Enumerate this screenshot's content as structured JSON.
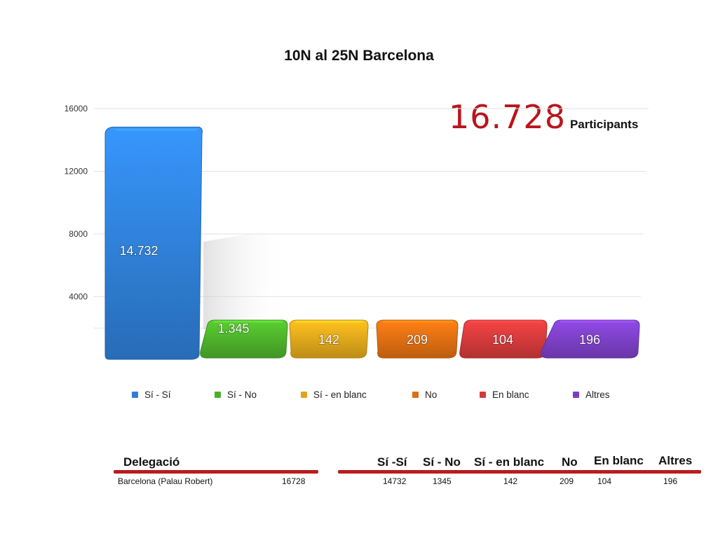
{
  "title": "10N al 25N Barcelona",
  "participants": {
    "value": "16.728",
    "label": "Participants"
  },
  "chart_data": {
    "type": "bar",
    "title": "10N al 25N Barcelona",
    "categories": [
      "Sí - Sí",
      "Sí - No",
      "Sí - en blanc",
      "No",
      "En blanc",
      "Altres"
    ],
    "values": [
      14732,
      1345,
      142,
      209,
      104,
      196
    ],
    "data_labels": [
      "14.732",
      "1.345",
      "142",
      "209",
      "104",
      "196"
    ],
    "colors": [
      "#2f7fd6",
      "#4caf2a",
      "#e0a51a",
      "#de6d12",
      "#d13a3a",
      "#7b3fc4"
    ],
    "yticks": [
      "4000",
      "8000",
      "12000",
      "16000"
    ],
    "ylim": [
      0,
      16000
    ],
    "grid": true,
    "legend": "bottom"
  },
  "table": {
    "left_headers": [
      "Delegació"
    ],
    "right_headers": [
      "Sí -Sí",
      "Sí - No",
      "Sí - en blanc",
      "No",
      "En blanc",
      "Altres"
    ],
    "row": {
      "name": "Barcelona (Palau Robert)",
      "total": "16728",
      "values": [
        "14732",
        "1345",
        "142",
        "209",
        "104",
        "196"
      ]
    }
  }
}
